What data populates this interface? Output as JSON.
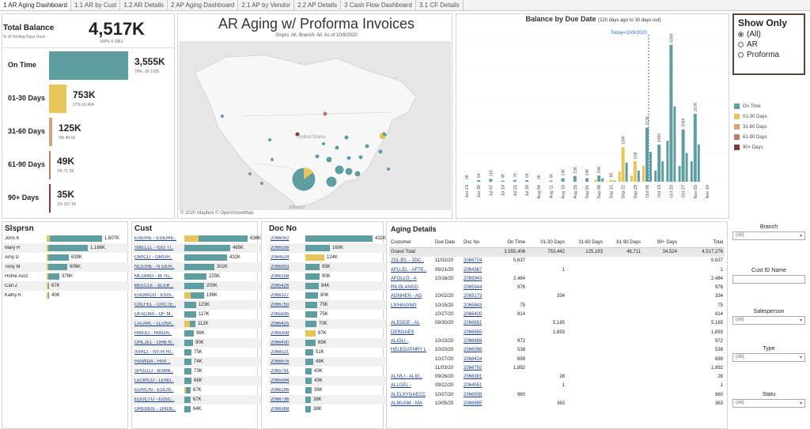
{
  "tabs": [
    "1 AR Aging Dashboard",
    "1.1 AR by Cust",
    "1.2 AR Details",
    "2 AP Aging Dashboard",
    "2.1 AP by Vendor",
    "2.2 AP Details",
    "3 Cash Flow Dashboard",
    "3.1 CF Details"
  ],
  "total": {
    "title": "Total Balance",
    "sub": "% of Tot   Avg Days   Docs",
    "value": "4,517K",
    "stats": "100%    4    1861"
  },
  "buckets": [
    {
      "label": "On Time",
      "value": "3,555K",
      "stats": "79%  -16  1026",
      "pct": 79,
      "color": "#5e9ea0"
    },
    {
      "label": "01-30 Days",
      "value": "753K",
      "stats": "17%  10  424",
      "pct": 17,
      "color": "#e8c55a"
    },
    {
      "label": "31-60 Days",
      "value": "125K",
      "stats": "3%  40  52",
      "pct": 3,
      "color": "#d7a37a"
    },
    {
      "label": "61-90 Days",
      "value": "49K",
      "stats": "1%  71  39",
      "pct": 1,
      "color": "#c07a6c"
    },
    {
      "label": "90+ Days",
      "value": "35K",
      "stats": "1%  167  24",
      "pct": 1,
      "color": "#7a3a3a"
    }
  ],
  "map": {
    "title": "AR Aging w/ Proforma Invoices",
    "subtitle": "Slsprs: All, Branch: All. As of 10/8/2020",
    "footer": "© 2020 Mapbox  © OpenStreetMap",
    "country1": "United States",
    "country2": "Mexico"
  },
  "colors": {
    "ontime": "#5e9ea0",
    "d30": "#e8c55a",
    "d60": "#d7a37a",
    "d90": "#c07a6c",
    "d90p": "#7a3a3a"
  },
  "chart_data": {
    "type": "bar",
    "title": "Balance by Due Date",
    "subtitle": "(120 days ago to 30 days out)",
    "annotation": "Today=10/8/2020",
    "x_ticks": [
      "Jun 23",
      "Jun 30",
      "Jul 07",
      "Jul 14",
      "Jul 21",
      "Jul 28",
      "Aug 04",
      "Aug 11",
      "Aug 18",
      "Aug 25",
      "Sep 01",
      "Sep 08",
      "Sep 15",
      "Sep 22",
      "Sep 29",
      "Oct 06",
      "Oct 13",
      "Oct 20",
      "Oct 27",
      "Nov 03",
      "Nov 10"
    ],
    "categories": [
      "Jun 23",
      "Jun 30",
      "Jul 07",
      "Jul 14",
      "Jul 21",
      "Jul 28",
      "Aug 04",
      "Aug 11",
      "Aug 18",
      "Aug 25",
      "Sep 01",
      "Sep 08",
      "Sep 15",
      "Sep 22",
      "Sep 29",
      "Oct 06",
      "Oct 13",
      "Oct 20",
      "Oct 27",
      "Nov 03",
      "Nov 10"
    ],
    "data_labels": [
      "0K",
      "6K",
      "11K",
      "4K",
      "7K",
      "6K",
      "0K",
      "4K",
      "14K",
      "23K",
      "14K",
      "24K",
      "8K",
      "136K",
      "81K",
      "213K",
      "146K",
      "539K",
      "206K",
      "267K",
      ""
    ],
    "values": [
      0,
      6,
      11,
      4,
      7,
      6,
      0,
      4,
      14,
      23,
      14,
      24,
      8,
      136,
      81,
      213,
      146,
      539,
      206,
      267,
      0
    ],
    "legend": [
      "On Time",
      "01-30 Days",
      "31-60 Days",
      "61-90 Days",
      "90+ Days"
    ],
    "ylim": [
      0,
      560
    ],
    "legend_position": "right"
  },
  "show_only": {
    "title": "Show Only",
    "options": [
      "(All)",
      "AR",
      "Proforma"
    ],
    "selected": 0
  },
  "slsprsn": {
    "title": "Slsprsn",
    "rows": [
      {
        "name": "John K",
        "value": "1,607K",
        "v": 1607,
        "y": 0.05
      },
      {
        "name": "Mary R",
        "value": "1,186K",
        "v": 1186,
        "y": 0.03
      },
      {
        "name": "Amy D",
        "value": "639K",
        "v": 639,
        "y": 0.05
      },
      {
        "name": "Tony M",
        "value": "606K",
        "v": 606,
        "y": 0.06
      },
      {
        "name": "Home Acct",
        "value": "378K",
        "v": 378,
        "y": 0.05
      },
      {
        "name": "Carl Z",
        "value": "67K",
        "v": 67,
        "y": 0.3
      },
      {
        "name": "Kathy K",
        "value": "40K",
        "v": 40,
        "y": 0.3
      }
    ]
  },
  "cust": {
    "title": "Cust",
    "rows": [
      {
        "name": "ESEIRE - ESIDRE..",
        "value": "636K",
        "v": 636,
        "y": 0.22
      },
      {
        "name": "SWLLLL - IGG TI..",
        "value": "465K",
        "v": 465,
        "y": 0
      },
      {
        "name": "OMICLI - OMGH..",
        "value": "432K",
        "v": 432,
        "y": 0
      },
      {
        "name": "NCEIHE - N GEH..",
        "value": "302K",
        "v": 302,
        "y": 0
      },
      {
        "name": "MLGMIG - M TIL..",
        "value": "225K",
        "v": 225,
        "y": 0
      },
      {
        "name": "BEECLE - &LEB ..",
        "value": "200K",
        "v": 200,
        "y": 0
      },
      {
        "name": "ESOWCO - ESIS..",
        "value": "199K",
        "v": 199,
        "y": 0.3
      },
      {
        "name": "OXLFEL - OXCTE..",
        "value": "123K",
        "v": 123,
        "y": 0
      },
      {
        "name": "OFACMA - OF M..",
        "value": "117K",
        "v": 117,
        "y": 0
      },
      {
        "name": "LALARL - LLUNA..",
        "value": "112K",
        "v": 112,
        "y": 0.5
      },
      {
        "name": "RBIULI - RBIGN..",
        "value": "96K",
        "v": 96,
        "y": 0
      },
      {
        "name": "OHLJEL - OHB.N..",
        "value": "90K",
        "v": 90,
        "y": 0
      },
      {
        "name": "IVIRCI - IVITR RI..",
        "value": "75K",
        "v": 75,
        "y": 0
      },
      {
        "name": "HIAWDA - HIVI ..",
        "value": "74K",
        "v": 74,
        "y": 0
      },
      {
        "name": "SPULLU - BSMB..",
        "value": "73K",
        "v": 73,
        "y": 0
      },
      {
        "name": "LEOPCO - LEND..",
        "value": "68K",
        "v": 68,
        "y": 0
      },
      {
        "name": "EDNC/N - EDLIN..",
        "value": "67K",
        "v": 67,
        "y": 0.2
      },
      {
        "name": "EDUCTU - EDSC..",
        "value": "67K",
        "v": 67,
        "y": 0
      },
      {
        "name": "OREMDE - ORDE..",
        "value": "64K",
        "v": 64,
        "y": 0
      }
    ]
  },
  "docno": {
    "title": "Doc No",
    "rows": [
      {
        "name": "2066052",
        "value": "432K",
        "v": 432,
        "y": 0
      },
      {
        "name": "2066556",
        "value": "160K",
        "v": 160,
        "y": 0
      },
      {
        "name": "2064524",
        "value": "124K",
        "v": 124,
        "y": 1
      },
      {
        "name": "2066903",
        "value": "93K",
        "v": 93,
        "y": 0
      },
      {
        "name": "2066158",
        "value": "90K",
        "v": 90,
        "y": 0
      },
      {
        "name": "2065426",
        "value": "84K",
        "v": 84,
        "y": 0
      },
      {
        "name": "2066127",
        "value": "80K",
        "v": 80,
        "y": 0
      },
      {
        "name": "2066750",
        "value": "75K",
        "v": 75,
        "y": 0
      },
      {
        "name": "2065935",
        "value": "75K",
        "v": 75,
        "y": 0
      },
      {
        "name": "2066425",
        "value": "70K",
        "v": 70,
        "y": 0
      },
      {
        "name": "2065308",
        "value": "67K",
        "v": 67,
        "y": 1
      },
      {
        "name": "2066430",
        "value": "65K",
        "v": 65,
        "y": 0
      },
      {
        "name": "2066521",
        "value": "51K",
        "v": 51,
        "y": 0
      },
      {
        "name": "2066676",
        "value": "49K",
        "v": 49,
        "y": 0
      },
      {
        "name": "2065791",
        "value": "43K",
        "v": 43,
        "y": 0
      },
      {
        "name": "2065594",
        "value": "43K",
        "v": 43,
        "y": 0
      },
      {
        "name": "2066196",
        "value": "39K",
        "v": 39,
        "y": 0
      },
      {
        "name": "2066736",
        "value": "38K",
        "v": 38,
        "y": 0
      },
      {
        "name": "2066368",
        "value": "38K",
        "v": 38,
        "y": 0
      }
    ]
  },
  "aging": {
    "title": "Aging Details",
    "headers": [
      "Customer",
      "Due Date",
      "Doc No",
      "On Time",
      "01-30 Days",
      "31-60 Days",
      "61-90 Days",
      "90+ Days",
      "Total"
    ],
    "grand": [
      "Grand Total",
      "",
      "",
      "3,555,406",
      "753,442",
      "125,193",
      "48,711",
      "34,524",
      "4,517,276"
    ],
    "rows": [
      [
        "2DLJEL - 2DC..",
        "11/02/20",
        "2066724",
        "5,637",
        "",
        "",
        "",
        "",
        "5,637"
      ],
      [
        "AFLLEL - AFTE..",
        "09/21/20",
        "2064367",
        "",
        "1",
        "",
        "",
        "",
        "1"
      ],
      [
        "AFOLLO - A",
        "10/16/20",
        "2065943",
        "2,484",
        "",
        "",
        "",
        "",
        "2,484"
      ],
      [
        "RILOLANGD",
        "",
        "2065944",
        "976",
        "",
        "",
        "",
        "",
        "976"
      ],
      [
        "AGNHEN - AG",
        "10/02/20",
        "2065173",
        "",
        "334",
        "",
        "",
        "",
        "334"
      ],
      [
        "LN'HAIGNG",
        "10/15/20",
        "2065843",
        "75",
        "",
        "",
        "",
        "",
        "75"
      ],
      [
        "",
        "10/27/20",
        "2066420",
        "814",
        "",
        "",
        "",
        "",
        "814"
      ],
      [
        "ALEGDE - AL",
        "09/30/20",
        "2066651",
        "",
        "5,165",
        "",
        "",
        "",
        "5,165"
      ],
      [
        "DERGAES",
        "",
        "2066655",
        "",
        "1,693",
        "",
        "",
        "",
        "1,693"
      ],
      [
        "ALIGLI -",
        "10/13/20",
        "2066688",
        "972",
        "",
        "",
        "",
        "",
        "972"
      ],
      [
        "HELEGATHRY L",
        "10/20/20",
        "2066086",
        "538",
        "",
        "",
        "",
        "",
        "538"
      ],
      [
        "",
        "10/27/20",
        "2066424",
        "699",
        "",
        "",
        "",
        "",
        "699"
      ],
      [
        "",
        "11/03/20",
        "2066792",
        "1,892",
        "",
        "",
        "",
        "",
        "1,892"
      ],
      [
        "ALIVLI - ALIG..",
        "09/26/20",
        "2066381",
        "",
        "28",
        "",
        "",
        "",
        "28"
      ],
      [
        "ALLGEL -",
        "09/22/20",
        "2064551",
        "",
        "1",
        "",
        "",
        "",
        "1"
      ],
      [
        "ALELXYGAECC",
        "10/27/20",
        "2066938",
        "960",
        "",
        "",
        "",
        "",
        "960"
      ],
      [
        "ALMUAM - MA",
        "10/05/20",
        "2066885",
        "",
        "363",
        "",
        "",
        "",
        "363"
      ]
    ]
  },
  "filters": [
    {
      "label": "Branch",
      "value": "(All)",
      "type": "dd"
    },
    {
      "label": "Cust ID Name",
      "value": "",
      "type": "tb"
    },
    {
      "label": "Salesperson",
      "value": "(All)",
      "type": "dd"
    },
    {
      "label": "Type",
      "value": "(All)",
      "type": "dd"
    },
    {
      "label": "Statu",
      "value": "(All)",
      "type": "dd"
    }
  ]
}
